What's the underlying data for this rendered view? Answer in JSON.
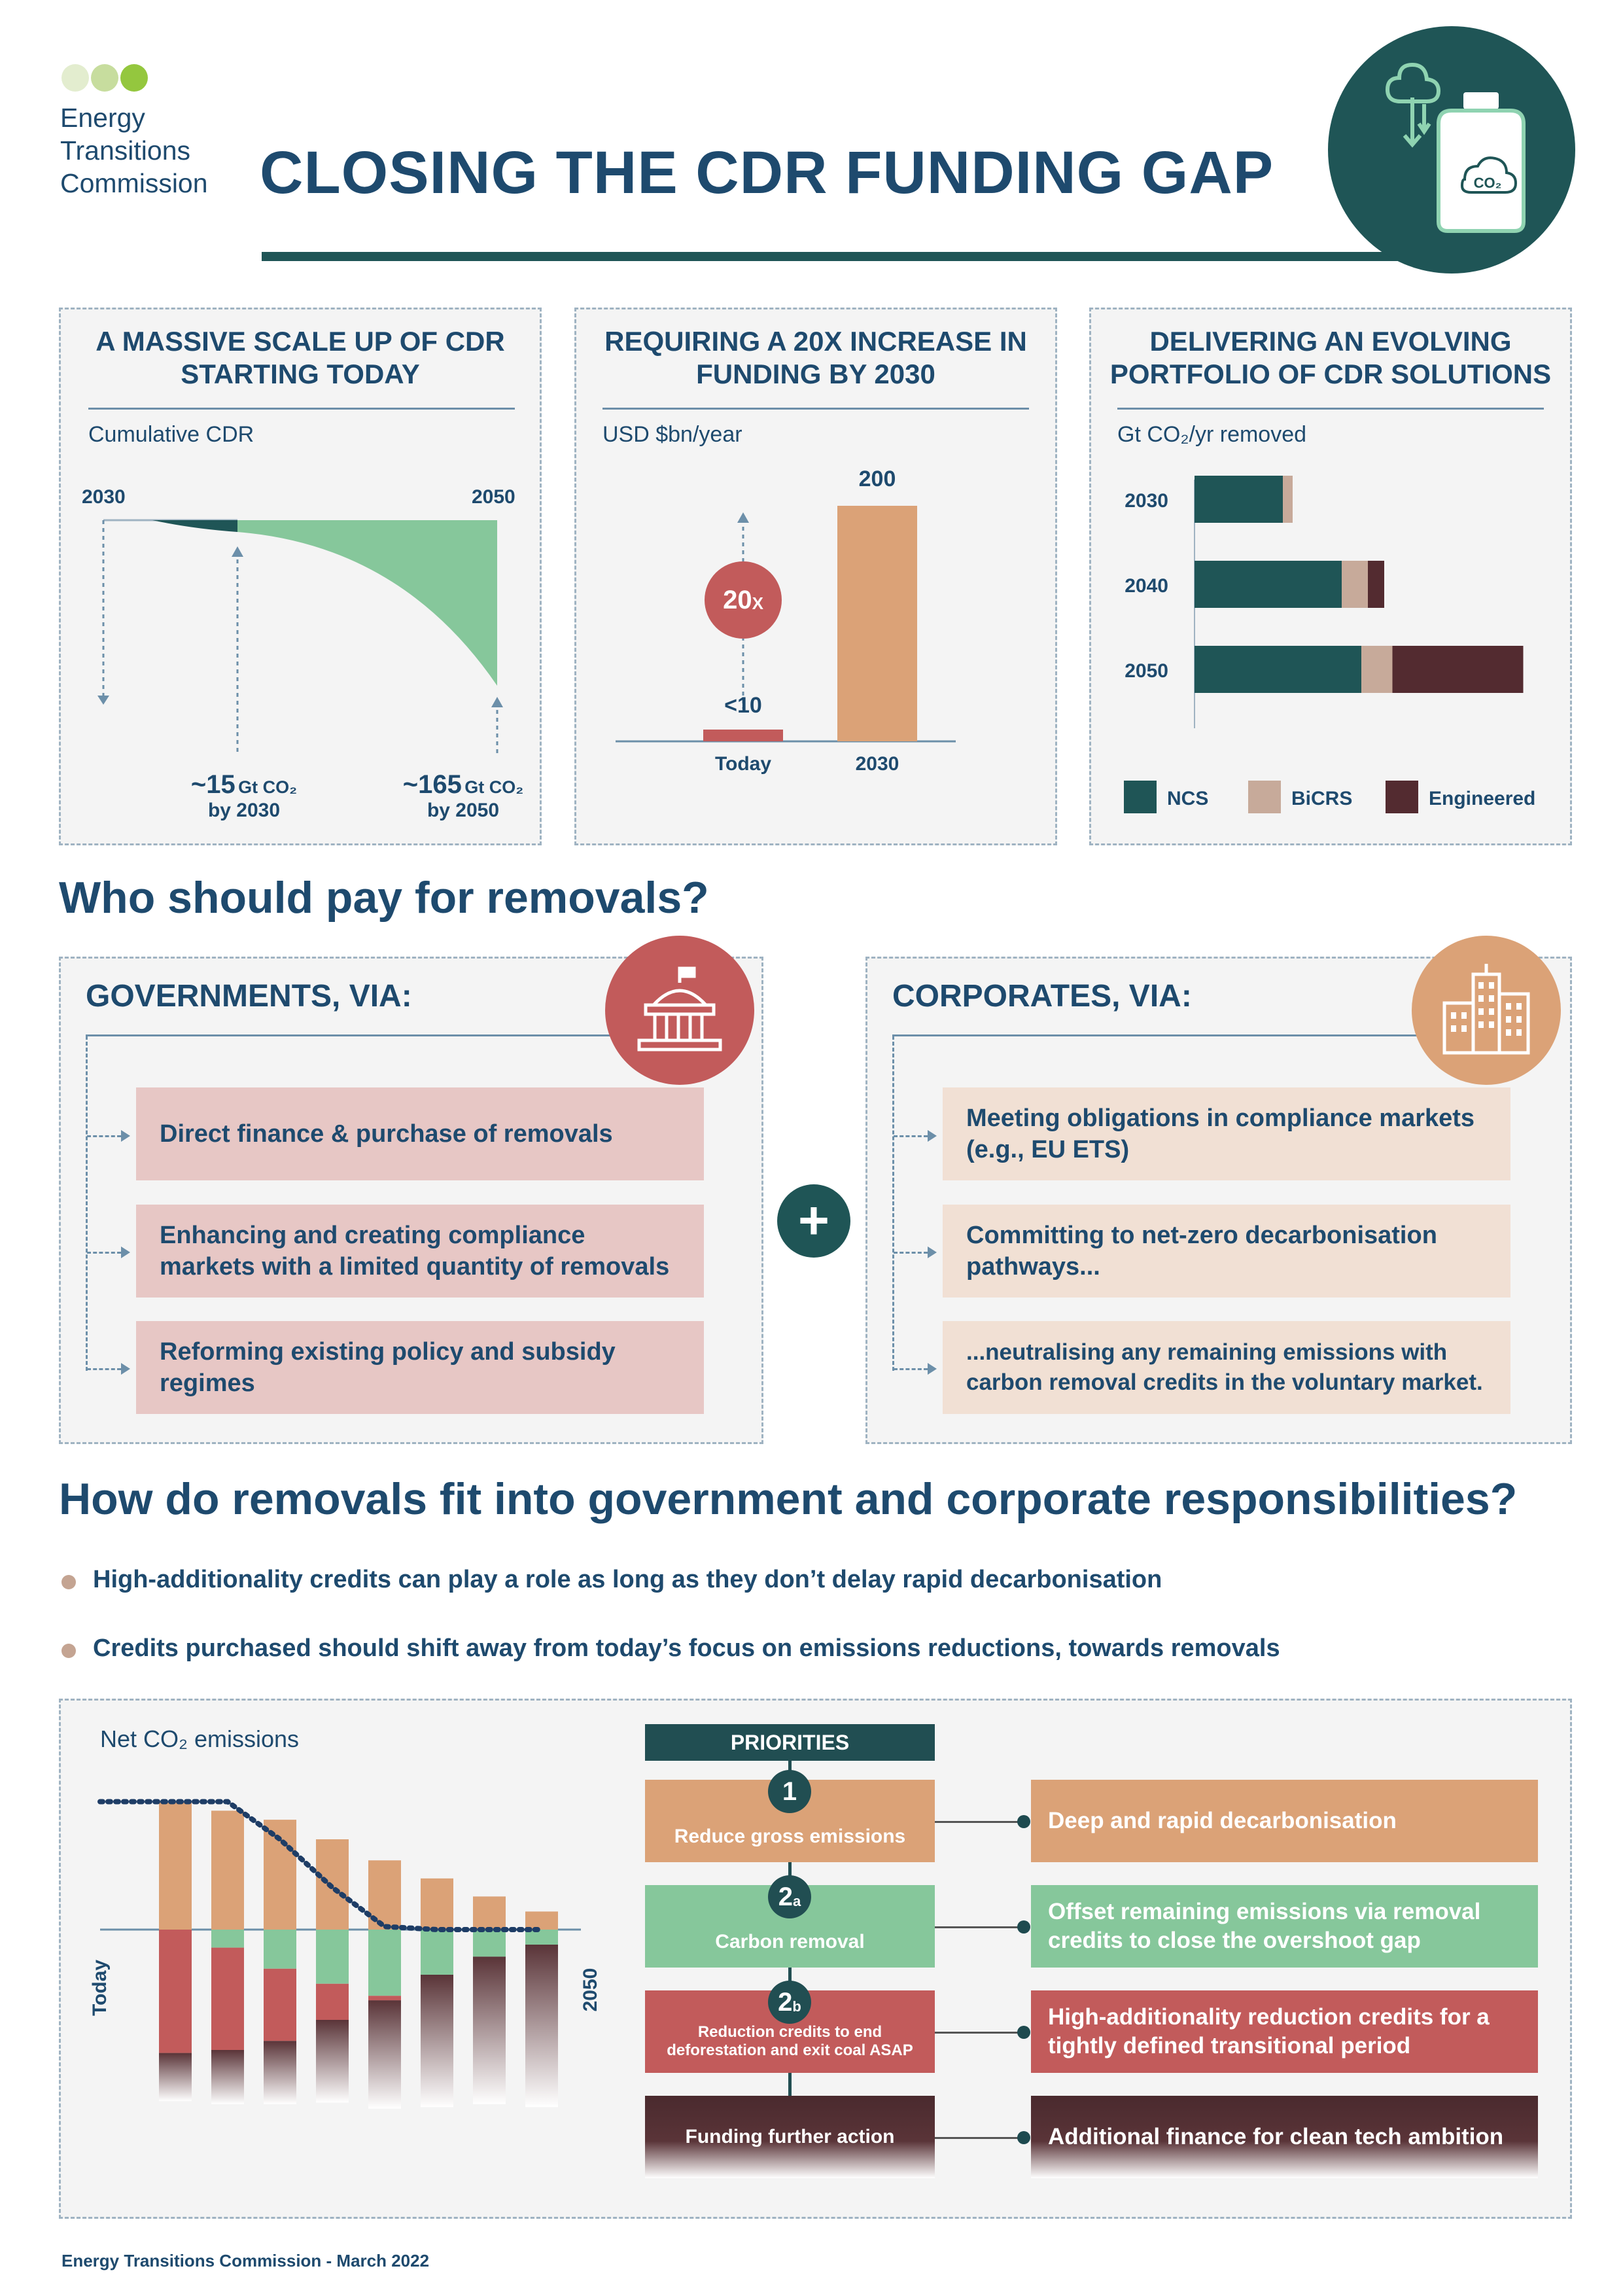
{
  "org": {
    "line1": "Energy",
    "line2": "Transitions",
    "line3": "Commission"
  },
  "title": "CLOSING THE CDR FUNDING GAP",
  "header_icon_label": "CO₂",
  "panels": {
    "scale": {
      "title_line1": "A MASSIVE SCALE UP OF CDR",
      "title_line2": "STARTING TODAY",
      "subtitle": "Cumulative CDR",
      "axis_start": "2030",
      "axis_end": "2050",
      "callout1_value": "~15",
      "callout1_unit": "Gt CO₂",
      "callout1_by": "by 2030",
      "callout2_value": "~165",
      "callout2_unit": "Gt CO₂",
      "callout2_by": "by 2050"
    },
    "funding": {
      "title_line1": "REQUIRING A 20X INCREASE IN",
      "title_line2": "FUNDING BY 2030",
      "subtitle": "USD $bn/year",
      "multiplier": "20",
      "multiplier_suffix": "X"
    },
    "portfolio": {
      "title_line1": "DELIVERING AN EVOLVING",
      "title_line2": "PORTFOLIO OF CDR SOLUTIONS",
      "subtitle": "Gt CO₂/yr removed"
    }
  },
  "chart_data": [
    {
      "type": "area",
      "title": "Cumulative CDR",
      "x": [
        2030,
        2050
      ],
      "y": [
        15,
        165
      ],
      "annotations": [
        "~15 Gt CO₂ by 2030",
        "~165 Gt CO₂ by 2050"
      ]
    },
    {
      "type": "bar",
      "title": "USD $bn/year",
      "categories": [
        "Today",
        "2030"
      ],
      "values": [
        10,
        200
      ],
      "data_labels": [
        "<10",
        "200"
      ],
      "annotations": [
        "20X"
      ],
      "colors": [
        "#c25b5b",
        "#dba277"
      ]
    },
    {
      "type": "bar",
      "orientation": "horizontal",
      "stacked": true,
      "title": "Gt CO₂/yr removed",
      "categories": [
        "2030",
        "2040",
        "2050"
      ],
      "series": [
        {
          "name": "NCS",
          "values": [
            2.7,
            4.5,
            5.1
          ],
          "color": "#1f5556"
        },
        {
          "name": "BiCRS",
          "values": [
            0.3,
            0.8,
            0.95
          ],
          "color": "#c7aa9a"
        },
        {
          "name": "Engineered",
          "values": [
            0,
            0.5,
            4.0
          ],
          "color": "#532b30"
        }
      ]
    },
    {
      "type": "bar",
      "stacked": true,
      "title": "Net CO₂ emissions",
      "xlabel_start": "Today",
      "xlabel_end": "2050",
      "categories": [
        "1",
        "2",
        "3",
        "4",
        "5",
        "6",
        "7",
        "8"
      ],
      "series": [
        {
          "name": "Reduce gross emissions",
          "values": [
            85,
            79,
            73,
            60,
            46,
            34,
            22,
            12
          ],
          "color": "#dba277"
        },
        {
          "name": "Carbon removal",
          "values": [
            0,
            -12,
            -26,
            -36,
            -44,
            -30,
            -18,
            -10
          ],
          "color": "#86c79b"
        },
        {
          "name": "Reduction credits",
          "values": [
            -82,
            -68,
            -48,
            -24,
            -3,
            0,
            0,
            0
          ],
          "color": "#c25b5b"
        },
        {
          "name": "Funding further action",
          "values": [
            -32,
            -36,
            -42,
            -55,
            -72,
            -88,
            -98,
            -108
          ],
          "color": "#5a3438"
        }
      ],
      "net_line": [
        85,
        85,
        60,
        28,
        2,
        0,
        0,
        0
      ]
    }
  ],
  "who_pays": {
    "heading": "Who should pay for removals?",
    "gov_title": "GOVERNMENTS, VIA:",
    "gov_items": [
      "Direct finance & purchase of removals",
      "Enhancing and creating compliance markets with a limited quantity of removals",
      "Reforming existing policy and subsidy regimes"
    ],
    "corp_title": "CORPORATES, VIA:",
    "corp_items": [
      "Meeting obligations in compliance markets (e.g., EU ETS)",
      "Committing to net-zero decarbonisation pathways...",
      "...neutralising any remaining emissions with carbon removal credits in the voluntary market."
    ],
    "plus": "+"
  },
  "fit": {
    "heading": "How do removals fit into government and corporate responsibilities?",
    "bullets": [
      "High-additionality credits can play a role as long as they don’t delay rapid decarbonisation",
      "Credits purchased should shift away from today’s focus on emissions reductions, towards removals"
    ],
    "chart_title": "Net CO₂ emissions",
    "axis_today": "Today",
    "axis_2050": "2050",
    "priorities_header": "PRIORITIES",
    "priorities": [
      {
        "num": "1",
        "sub": "",
        "label": "Reduce gross emissions",
        "result": "Deep and rapid decarbonisation",
        "color": "#dba277"
      },
      {
        "num": "2",
        "sub": "a",
        "label": "Carbon removal",
        "result": "Offset  remaining emissions via removal credits to close the overshoot gap",
        "color": "#86c79b"
      },
      {
        "num": "2",
        "sub": "b",
        "label": "Reduction credits to end deforestation and exit coal ASAP",
        "result": "High-additionality reduction credits for a tightly defined transitional period",
        "color": "#c25b5b"
      },
      {
        "num": "",
        "sub": "",
        "label": "Funding further action",
        "result": "Additional finance for clean tech ambition",
        "color": "#5a3438"
      }
    ]
  },
  "footer": "Energy Transitions Commission - March 2022"
}
